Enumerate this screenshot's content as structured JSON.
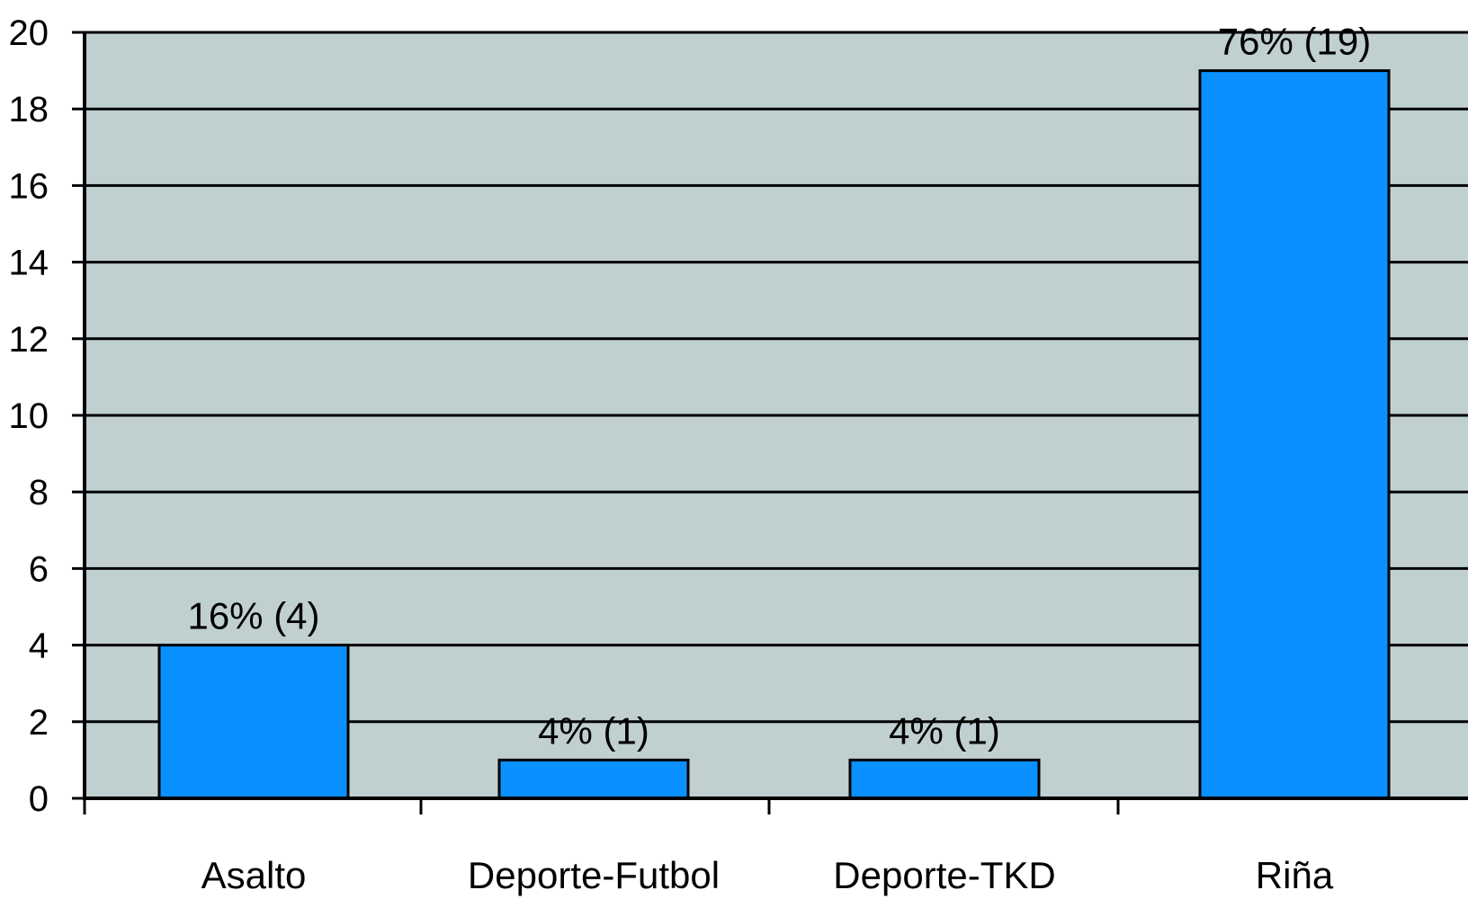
{
  "chart_data": {
    "type": "bar",
    "title": "",
    "xlabel": "",
    "ylabel": "",
    "categories": [
      "Asalto",
      "Deporte-Futbol",
      "Deporte-TKD",
      "Riña"
    ],
    "values": [
      4,
      1,
      1,
      19
    ],
    "data_labels": [
      "16% (4)",
      "4% (1)",
      "4% (1)",
      "76% (19)"
    ],
    "ylim": [
      0,
      20
    ],
    "yticks": [
      0,
      2,
      4,
      6,
      8,
      10,
      12,
      14,
      16,
      18,
      20
    ],
    "grid": true,
    "legend": "none",
    "colors": {
      "plot_background": "#c0cfcf",
      "bar_fill": "#0a90ff",
      "bar_stroke": "#000000",
      "gridline": "#000000"
    }
  }
}
